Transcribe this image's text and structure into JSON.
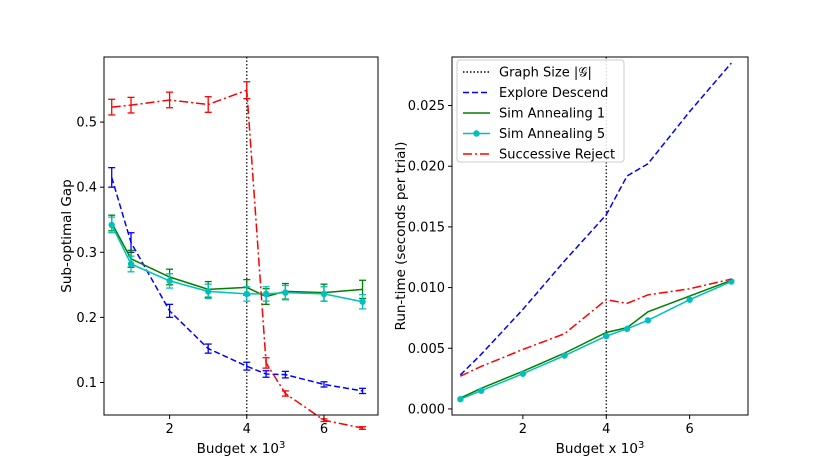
{
  "colors": {
    "explore": "#0000ff",
    "sa1": "#008000",
    "sa5": "#00bfbf",
    "sr": "#ff0000",
    "graph": "#000000"
  },
  "chart_data": [
    {
      "type": "line",
      "xlabel": "Budget x 10",
      "xlabel_sup": "3",
      "ylabel": "Sub-optimal Gap",
      "xlim": [
        0.3,
        7.4
      ],
      "ylim": [
        0.05,
        0.6
      ],
      "xticks": [
        2,
        4,
        6
      ],
      "xtick_labels": [
        "2",
        "4",
        "6"
      ],
      "yticks": [
        0.1,
        0.2,
        0.3,
        0.4,
        0.5
      ],
      "ytick_labels": [
        "0.1",
        "0.2",
        "0.3",
        "0.4",
        "0.5"
      ],
      "vline": 4,
      "series": [
        {
          "name": "Explore Descend",
          "key": "explore",
          "x": [
            0.5,
            1,
            2,
            3,
            4,
            4.5,
            5,
            6,
            7
          ],
          "y": [
            0.415,
            0.315,
            0.21,
            0.152,
            0.125,
            0.113,
            0.112,
            0.097,
            0.087
          ],
          "err": [
            0.015,
            0.015,
            0.01,
            0.007,
            0.006,
            0.005,
            0.005,
            0.004,
            0.004
          ]
        },
        {
          "name": "Sim Annealing 1",
          "key": "sa1",
          "x": [
            0.5,
            1,
            2,
            3,
            4,
            4.5,
            5,
            6,
            7
          ],
          "y": [
            0.345,
            0.29,
            0.262,
            0.243,
            0.246,
            0.232,
            0.24,
            0.238,
            0.243
          ],
          "err": [
            0.012,
            0.013,
            0.012,
            0.012,
            0.012,
            0.012,
            0.012,
            0.013,
            0.014
          ]
        },
        {
          "name": "Sim Annealing 5",
          "key": "sa5",
          "x": [
            0.5,
            1,
            2,
            3,
            4,
            4.5,
            5,
            6,
            7
          ],
          "y": [
            0.342,
            0.282,
            0.256,
            0.24,
            0.236,
            0.236,
            0.238,
            0.236,
            0.224
          ],
          "err": [
            0.012,
            0.012,
            0.011,
            0.011,
            0.011,
            0.011,
            0.011,
            0.011,
            0.011
          ]
        },
        {
          "name": "Successive Reject",
          "key": "sr",
          "x": [
            0.5,
            1,
            2,
            3,
            4,
            4.5,
            5,
            6,
            7
          ],
          "y": [
            0.523,
            0.526,
            0.534,
            0.527,
            0.549,
            0.13,
            0.083,
            0.042,
            0.03
          ],
          "err": [
            0.012,
            0.012,
            0.012,
            0.012,
            0.013,
            0.008,
            0.004,
            0.002,
            0.002
          ]
        }
      ]
    },
    {
      "type": "line",
      "xlabel": "Budget x 10",
      "xlabel_sup": "3",
      "ylabel": "Run-time (seconds per trial)",
      "xlim": [
        0.3,
        7.4
      ],
      "ylim": [
        -0.0005,
        0.029
      ],
      "xticks": [
        2,
        4,
        6
      ],
      "xtick_labels": [
        "2",
        "4",
        "6"
      ],
      "yticks": [
        0.0,
        0.005,
        0.01,
        0.015,
        0.02,
        0.025
      ],
      "ytick_labels": [
        "0.000",
        "0.005",
        "0.010",
        "0.015",
        "0.020",
        "0.025"
      ],
      "vline": 4,
      "series": [
        {
          "name": "Explore Descend",
          "key": "explore",
          "x": [
            0.5,
            1,
            2,
            3,
            4,
            4.5,
            5,
            6,
            7
          ],
          "y": [
            0.0028,
            0.0045,
            0.0082,
            0.0122,
            0.016,
            0.0192,
            0.0202,
            0.0245,
            0.0285
          ]
        },
        {
          "name": "Sim Annealing 1",
          "key": "sa1",
          "x": [
            0.5,
            1,
            2,
            3,
            4,
            4.5,
            5,
            6,
            7
          ],
          "y": [
            0.0009,
            0.0017,
            0.0031,
            0.0046,
            0.0063,
            0.0067,
            0.008,
            0.0093,
            0.0106
          ]
        },
        {
          "name": "Sim Annealing 5",
          "key": "sa5",
          "x": [
            0.5,
            1,
            2,
            3,
            4,
            4.5,
            5,
            6,
            7
          ],
          "y": [
            0.0008,
            0.0015,
            0.0029,
            0.0044,
            0.006,
            0.0066,
            0.0073,
            0.009,
            0.0105
          ]
        },
        {
          "name": "Successive Reject",
          "key": "sr",
          "x": [
            0.5,
            1,
            2,
            3,
            4,
            4.5,
            5,
            6,
            7
          ],
          "y": [
            0.0027,
            0.0035,
            0.0049,
            0.0062,
            0.009,
            0.0087,
            0.0094,
            0.0099,
            0.0107
          ]
        }
      ]
    }
  ],
  "legend": {
    "entries": [
      {
        "key": "graph",
        "label": "Graph Size |𝒢|"
      },
      {
        "key": "explore",
        "label": "Explore Descend"
      },
      {
        "key": "sa1",
        "label": "Sim Annealing 1"
      },
      {
        "key": "sa5",
        "label": "Sim Annealing 5"
      },
      {
        "key": "sr",
        "label": "Successive Reject"
      }
    ]
  }
}
